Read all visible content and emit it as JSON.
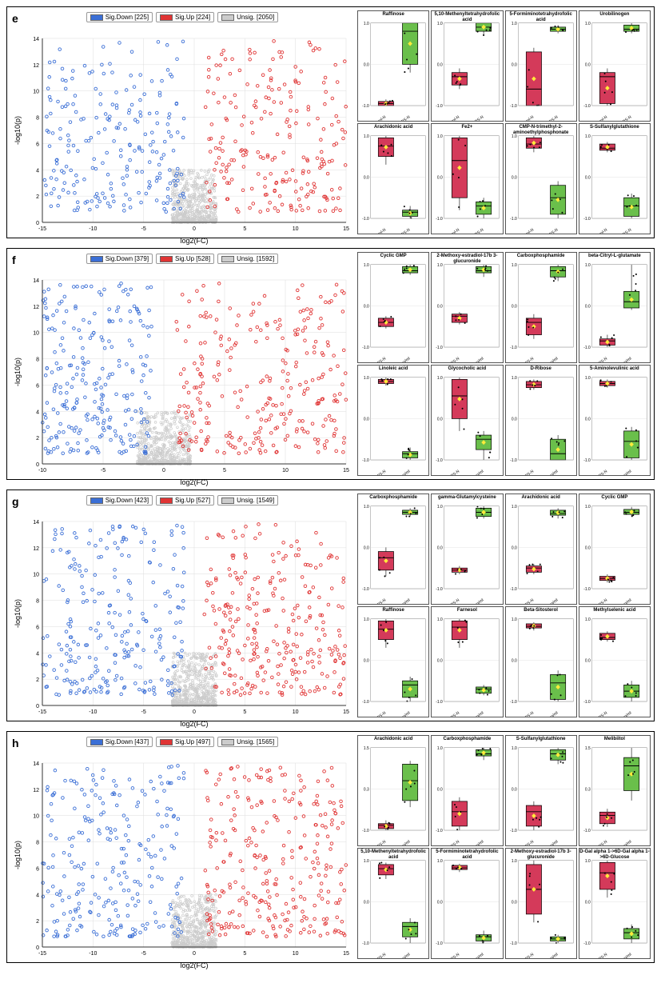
{
  "colors": {
    "down": "#3b6fd6",
    "up": "#e03434",
    "unsig": "#cccccc",
    "box_red": "#d43a5a",
    "box_green": "#6abf4b",
    "grid": "#dddddd",
    "axis": "#333333"
  },
  "panels": [
    {
      "id": "e",
      "legend": {
        "down": "Sig.Down [225]",
        "up": "Sig.Up [224]",
        "unsig": "Unsig. [2050]"
      },
      "volcano": {
        "xlim": [
          -15,
          15
        ],
        "ylim": [
          0,
          14
        ],
        "xlabel": "log2(FC)",
        "ylabel": "-log10(p)",
        "xticks": [
          -15,
          -10,
          -5,
          0,
          5,
          10,
          15
        ],
        "yticks": [
          0,
          2,
          4,
          6,
          8,
          10,
          12,
          14
        ],
        "counts": {
          "down": 225,
          "up": 224,
          "unsig": 2050
        }
      },
      "boxes": [
        {
          "title": "Raffinose",
          "g1_label": "Control-N",
          "g2_label": "LPS-N",
          "g1": {
            "median": -0.95,
            "q1": -1.0,
            "q3": -0.9,
            "lo": -1.0,
            "hi": -0.85
          },
          "g2": {
            "median": 0.8,
            "q1": 0.0,
            "q3": 1.0,
            "lo": -0.2,
            "hi": 1.0
          },
          "ylim": [
            -1,
            1
          ]
        },
        {
          "title": "5,10-Methenyltetrahydrofolic acid",
          "g1_label": "Control-N",
          "g2_label": "LPS-N",
          "g1": {
            "median": -0.3,
            "q1": -0.5,
            "q3": -0.2,
            "lo": -0.6,
            "hi": -0.1
          },
          "g2": {
            "median": 0.9,
            "q1": 0.8,
            "q3": 1.0,
            "lo": 0.7,
            "hi": 1.0
          },
          "ylim": [
            -1,
            1
          ]
        },
        {
          "title": "5-Formiminotetrahydrofolic acid",
          "g1_label": "Control-N",
          "g2_label": "LPS-N",
          "g1": {
            "median": -0.6,
            "q1": -1.0,
            "q3": 0.3,
            "lo": -1.0,
            "hi": 0.4
          },
          "g2": {
            "median": 0.85,
            "q1": 0.8,
            "q3": 0.9,
            "lo": 0.75,
            "hi": 0.95
          },
          "ylim": [
            -1,
            1
          ]
        },
        {
          "title": "Urobilinogen",
          "g1_label": "Control-N",
          "g2_label": "LPS-N",
          "g1": {
            "median": -0.3,
            "q1": -0.95,
            "q3": -0.2,
            "lo": -1.0,
            "hi": -0.1
          },
          "g2": {
            "median": 0.85,
            "q1": 0.8,
            "q3": 0.95,
            "lo": 0.75,
            "hi": 1.0
          },
          "ylim": [
            -1,
            1
          ]
        },
        {
          "title": "Arachidonic acid",
          "g1_label": "Control-N",
          "g2_label": "LPS-N",
          "g1": {
            "median": 0.75,
            "q1": 0.5,
            "q3": 0.95,
            "lo": 0.3,
            "hi": 1.0
          },
          "g2": {
            "median": -0.85,
            "q1": -0.95,
            "q3": -0.8,
            "lo": -1.0,
            "hi": -0.7
          },
          "ylim": [
            -1,
            1
          ]
        },
        {
          "title": "Fe2+",
          "g1_label": "Control-N",
          "g2_label": "LPS-N",
          "g1": {
            "median": 0.4,
            "q1": -0.5,
            "q3": 0.95,
            "lo": -0.8,
            "hi": 1.0
          },
          "g2": {
            "median": -0.7,
            "q1": -0.9,
            "q3": -0.6,
            "lo": -1.0,
            "hi": -0.5
          },
          "ylim": [
            -1,
            1
          ]
        },
        {
          "title": "CMP-N-trimethyl-2-aminoethylphosphonate",
          "g1_label": "Control-N",
          "g2_label": "LPS-N",
          "g1": {
            "median": 0.8,
            "q1": 0.7,
            "q3": 0.95,
            "lo": 0.6,
            "hi": 1.0
          },
          "g2": {
            "median": -0.5,
            "q1": -0.9,
            "q3": -0.2,
            "lo": -1.0,
            "hi": -0.1
          },
          "ylim": [
            -1,
            1
          ]
        },
        {
          "title": "S-Sulfanylglutathione",
          "g1_label": "Control-N",
          "g2_label": "LPS-N",
          "g1": {
            "median": 0.7,
            "q1": 0.65,
            "q3": 0.8,
            "lo": 0.6,
            "hi": 0.85
          },
          "g2": {
            "median": -0.7,
            "q1": -0.95,
            "q3": -0.5,
            "lo": -1.0,
            "hi": -0.4
          },
          "ylim": [
            -1,
            1
          ]
        }
      ]
    },
    {
      "id": "f",
      "legend": {
        "down": "Sig.Down [379]",
        "up": "Sig.Up [528]",
        "unsig": "Unsig. [1592]"
      },
      "volcano": {
        "xlim": [
          -10,
          15
        ],
        "ylim": [
          0,
          14
        ],
        "xlabel": "log2(FC)",
        "ylabel": "-log10(p)",
        "xticks": [
          -10,
          -5,
          0,
          5,
          10,
          15
        ],
        "yticks": [
          0,
          2,
          4,
          6,
          8,
          10,
          12,
          14
        ],
        "counts": {
          "down": 379,
          "up": 528,
          "unsig": 1592
        }
      },
      "boxes": [
        {
          "title": "Cyclic GMP",
          "g1_label": "LPS-N",
          "g2_label": "LPS+0.3ug/ml",
          "g1": {
            "median": -0.4,
            "q1": -0.5,
            "q3": -0.3,
            "lo": -0.55,
            "hi": -0.25
          },
          "g2": {
            "median": 0.85,
            "q1": 0.8,
            "q3": 0.95,
            "lo": 0.75,
            "hi": 1.0
          },
          "ylim": [
            -1,
            1
          ]
        },
        {
          "title": "2-Methoxy-estradiol-17b 3-glucuronide",
          "g1_label": "LPS-N",
          "g2_label": "LPS+0.3ug/ml",
          "g1": {
            "median": -0.25,
            "q1": -0.4,
            "q3": -0.2,
            "lo": -0.45,
            "hi": -0.15
          },
          "g2": {
            "median": 0.85,
            "q1": 0.8,
            "q3": 0.95,
            "lo": 0.7,
            "hi": 1.0
          },
          "ylim": [
            -1,
            1
          ]
        },
        {
          "title": "Carboxphosphamide",
          "g1_label": "LPS-N",
          "g2_label": "LPS+0.3ug/ml",
          "g1": {
            "median": -0.4,
            "q1": -0.7,
            "q3": -0.3,
            "lo": -0.8,
            "hi": -0.2
          },
          "g2": {
            "median": 0.85,
            "q1": 0.7,
            "q3": 0.95,
            "lo": 0.6,
            "hi": 1.0
          },
          "ylim": [
            -1,
            1
          ]
        },
        {
          "title": "beta-Citryl-L-glutamate",
          "g1_label": "LPS-N",
          "g2_label": "LPS+0.3ug/ml",
          "g1": {
            "median": -0.85,
            "q1": -0.95,
            "q3": -0.8,
            "lo": -1.0,
            "hi": -0.7
          },
          "g2": {
            "median": 0.1,
            "q1": -0.05,
            "q3": 0.35,
            "lo": -0.1,
            "hi": 1.0
          },
          "ylim": [
            -1,
            1
          ]
        },
        {
          "title": "Linoleic acid",
          "g1_label": "LPS-N",
          "g2_label": "LPS+0.3ug/ml",
          "g1": {
            "median": 0.9,
            "q1": 0.85,
            "q3": 0.95,
            "lo": 0.8,
            "hi": 1.0
          },
          "g2": {
            "median": -0.85,
            "q1": -0.95,
            "q3": -0.8,
            "lo": -1.0,
            "hi": -0.7
          },
          "ylim": [
            -1,
            1
          ]
        },
        {
          "title": "Glycocholic acid",
          "g1_label": "LPS-N",
          "g2_label": "LPS+0.3ug/ml",
          "g1": {
            "median": 0.55,
            "q1": 0.0,
            "q3": 0.95,
            "lo": -0.3,
            "hi": 1.0
          },
          "g2": {
            "median": -0.5,
            "q1": -0.75,
            "q3": -0.4,
            "lo": -1.0,
            "hi": -0.3
          },
          "ylim": [
            -1,
            1
          ]
        },
        {
          "title": "D-Ribose",
          "g1_label": "LPS-N",
          "g2_label": "LPS+0.3ug/ml",
          "g1": {
            "median": 0.82,
            "q1": 0.75,
            "q3": 0.9,
            "lo": 0.7,
            "hi": 0.95
          },
          "g2": {
            "median": -0.85,
            "q1": -1.0,
            "q3": -0.5,
            "lo": -1.0,
            "hi": -0.4
          },
          "ylim": [
            -1,
            1
          ]
        },
        {
          "title": "5-Aminolevulinic acid",
          "g1_label": "LPS-N",
          "g2_label": "LPS+0.3ug/ml",
          "g1": {
            "median": 0.85,
            "q1": 0.8,
            "q3": 0.9,
            "lo": 0.75,
            "hi": 0.95
          },
          "g2": {
            "median": -0.55,
            "q1": -0.95,
            "q3": -0.3,
            "lo": -1.0,
            "hi": -0.2
          },
          "ylim": [
            -1,
            1
          ]
        }
      ]
    },
    {
      "id": "g",
      "legend": {
        "down": "Sig.Down [423]",
        "up": "Sig.Up [527]",
        "unsig": "Unsig. [1549]"
      },
      "volcano": {
        "xlim": [
          -15,
          15
        ],
        "ylim": [
          0,
          14
        ],
        "xlabel": "log2(FC)",
        "ylabel": "-log10(p)",
        "xticks": [
          -15,
          -10,
          -5,
          0,
          5,
          10,
          15
        ],
        "yticks": [
          0,
          2,
          4,
          6,
          8,
          10,
          12,
          14
        ],
        "counts": {
          "down": 423,
          "up": 527,
          "unsig": 1549
        }
      },
      "boxes": [
        {
          "title": "Carboxphosphamide",
          "g1_label": "LPS-N",
          "g2_label": "LPS+3ug/ml",
          "g1": {
            "median": -0.25,
            "q1": -0.55,
            "q3": -0.1,
            "lo": -0.7,
            "hi": 0.0
          },
          "g2": {
            "median": 0.85,
            "q1": 0.8,
            "q3": 0.9,
            "lo": 0.75,
            "hi": 0.95
          },
          "ylim": [
            -1,
            1
          ]
        },
        {
          "title": "gamma-Glutamylcysteine",
          "g1_label": "LPS-N",
          "g2_label": "LPS+3ug/ml",
          "g1": {
            "median": -0.55,
            "q1": -0.6,
            "q3": -0.5,
            "lo": -0.65,
            "hi": -0.45
          },
          "g2": {
            "median": 0.85,
            "q1": 0.75,
            "q3": 0.95,
            "lo": 0.7,
            "hi": 1.0
          },
          "ylim": [
            -1,
            1
          ]
        },
        {
          "title": "Arachidonic acid",
          "g1_label": "LPS-N",
          "g2_label": "LPS+3ug/ml",
          "g1": {
            "median": -0.5,
            "q1": -0.6,
            "q3": -0.45,
            "lo": -0.65,
            "hi": -0.4
          },
          "g2": {
            "median": 0.82,
            "q1": 0.78,
            "q3": 0.9,
            "lo": 0.7,
            "hi": 0.95
          },
          "ylim": [
            -1,
            1
          ]
        },
        {
          "title": "Cyclic GMP",
          "g1_label": "LPS-N",
          "g2_label": "LPS+3ug/ml",
          "g1": {
            "median": -0.75,
            "q1": -0.8,
            "q3": -0.7,
            "lo": -0.85,
            "hi": -0.65
          },
          "g2": {
            "median": 0.85,
            "q1": 0.8,
            "q3": 0.92,
            "lo": 0.75,
            "hi": 0.98
          },
          "ylim": [
            -1,
            1
          ]
        },
        {
          "title": "Raffinose",
          "g1_label": "LPS-N",
          "g2_label": "LPS+3ug/ml",
          "g1": {
            "median": 0.75,
            "q1": 0.5,
            "q3": 0.95,
            "lo": 0.3,
            "hi": 1.0
          },
          "g2": {
            "median": -0.6,
            "q1": -0.9,
            "q3": -0.5,
            "lo": -1.0,
            "hi": -0.4
          },
          "ylim": [
            -1,
            1
          ]
        },
        {
          "title": "Farnesol",
          "g1_label": "LPS-N",
          "g2_label": "LPS+3ug/ml",
          "g1": {
            "median": 0.8,
            "q1": 0.5,
            "q3": 0.95,
            "lo": 0.3,
            "hi": 1.0
          },
          "g2": {
            "median": -0.7,
            "q1": -0.8,
            "q3": -0.65,
            "lo": -0.85,
            "hi": -0.6
          },
          "ylim": [
            -1,
            1
          ]
        },
        {
          "title": "Beta-Sitosterol",
          "g1_label": "LPS-N",
          "g2_label": "LPS+3ug/ml",
          "g1": {
            "median": 0.82,
            "q1": 0.78,
            "q3": 0.88,
            "lo": 0.72,
            "hi": 0.92
          },
          "g2": {
            "median": -0.55,
            "q1": -0.95,
            "q3": -0.35,
            "lo": -1.0,
            "hi": -0.25
          },
          "ylim": [
            -1,
            1
          ]
        },
        {
          "title": "Methylselenic acid",
          "g1_label": "LPS-N",
          "g2_label": "LPS+3ug/ml",
          "g1": {
            "median": 0.55,
            "q1": 0.5,
            "q3": 0.65,
            "lo": 0.45,
            "hi": 0.7
          },
          "g2": {
            "median": -0.75,
            "q1": -0.9,
            "q3": -0.6,
            "lo": -1.0,
            "hi": -0.5
          },
          "ylim": [
            -1,
            1
          ]
        }
      ]
    },
    {
      "id": "h",
      "legend": {
        "down": "Sig.Down [437]",
        "up": "Sig.Up [497]",
        "unsig": "Unsig. [1565]"
      },
      "volcano": {
        "xlim": [
          -15,
          15
        ],
        "ylim": [
          0,
          14
        ],
        "xlabel": "log2(FC)",
        "ylabel": "-log10(p)",
        "xticks": [
          -15,
          -10,
          -5,
          0,
          5,
          10,
          15
        ],
        "yticks": [
          0,
          2,
          4,
          6,
          8,
          10,
          12,
          14
        ],
        "counts": {
          "down": 437,
          "up": 497,
          "unsig": 1565
        }
      },
      "boxes": [
        {
          "title": "Arachidonic acid",
          "g1_label": "LPS-N",
          "g2_label": "LPS+30ug/ml",
          "g1": {
            "median": -0.85,
            "q1": -0.95,
            "q3": -0.8,
            "lo": -1.0,
            "hi": -0.7
          },
          "g2": {
            "median": 0.5,
            "q1": -0.1,
            "q3": 1.0,
            "lo": -0.3,
            "hi": 1.1
          },
          "ylim": [
            -1,
            1.5
          ]
        },
        {
          "title": "Carboxphosphamide",
          "g1_label": "LPS-N",
          "g2_label": "LPS+30ug/ml",
          "g1": {
            "median": -0.55,
            "q1": -0.9,
            "q3": -0.3,
            "lo": -1.0,
            "hi": -0.2
          },
          "g2": {
            "median": 0.85,
            "q1": 0.8,
            "q3": 0.95,
            "lo": 0.7,
            "hi": 1.0
          },
          "ylim": [
            -1,
            1
          ]
        },
        {
          "title": "S-Sulfanylglutathione",
          "g1_label": "LPS-N",
          "g2_label": "LPS+30ug/ml",
          "g1": {
            "median": -0.55,
            "q1": -0.9,
            "q3": -0.4,
            "lo": -1.0,
            "hi": -0.3
          },
          "g2": {
            "median": 0.85,
            "q1": 0.7,
            "q3": 0.95,
            "lo": 0.6,
            "hi": 1.0
          },
          "ylim": [
            -1,
            1
          ]
        },
        {
          "title": "Melibiitol",
          "g1_label": "LPS-N",
          "g2_label": "LPS+30ug/ml",
          "g1": {
            "median": -0.55,
            "q1": -0.8,
            "q3": -0.45,
            "lo": -0.9,
            "hi": -0.35
          },
          "g2": {
            "median": 0.95,
            "q1": 0.2,
            "q3": 1.2,
            "lo": -0.1,
            "hi": 1.5
          },
          "ylim": [
            -1,
            1.5
          ]
        },
        {
          "title": "5,10-Methenyltetrahydrofolic acid",
          "g1_label": "LPS-N",
          "g2_label": "LPS+30ug/ml",
          "g1": {
            "median": 0.8,
            "q1": 0.65,
            "q3": 0.9,
            "lo": 0.55,
            "hi": 0.95
          },
          "g2": {
            "median": -0.6,
            "q1": -0.85,
            "q3": -0.5,
            "lo": -1.0,
            "hi": -0.4
          },
          "ylim": [
            -1,
            1
          ]
        },
        {
          "title": "5-Formiminotetrahydrofolic acid",
          "g1_label": "LPS-N",
          "g2_label": "LPS+30ug/ml",
          "g1": {
            "median": 0.82,
            "q1": 0.78,
            "q3": 0.88,
            "lo": 0.72,
            "hi": 0.92
          },
          "g2": {
            "median": -0.85,
            "q1": -0.95,
            "q3": -0.8,
            "lo": -1.0,
            "hi": -0.7
          },
          "ylim": [
            -1,
            1
          ]
        },
        {
          "title": "2-Methoxy-estradiol-17b 3-glucuronide",
          "g1_label": "LPS-N",
          "g2_label": "LPS+30ug/ml",
          "g1": {
            "median": 0.3,
            "q1": -0.3,
            "q3": 0.9,
            "lo": -0.5,
            "hi": 1.0
          },
          "g2": {
            "median": -0.9,
            "q1": -0.95,
            "q3": -0.85,
            "lo": -1.0,
            "hi": -0.8
          },
          "ylim": [
            -1,
            1
          ]
        },
        {
          "title": "D-Gal alpha 1->6D-Gal alpha 1->6D-Glucose",
          "g1_label": "LPS-N",
          "g2_label": "LPS+30ug/ml",
          "g1": {
            "median": 0.7,
            "q1": 0.3,
            "q3": 0.95,
            "lo": 0.1,
            "hi": 1.0
          },
          "g2": {
            "median": -0.75,
            "q1": -0.9,
            "q3": -0.65,
            "lo": -1.0,
            "hi": -0.55
          },
          "ylim": [
            -1,
            1
          ]
        }
      ]
    }
  ]
}
